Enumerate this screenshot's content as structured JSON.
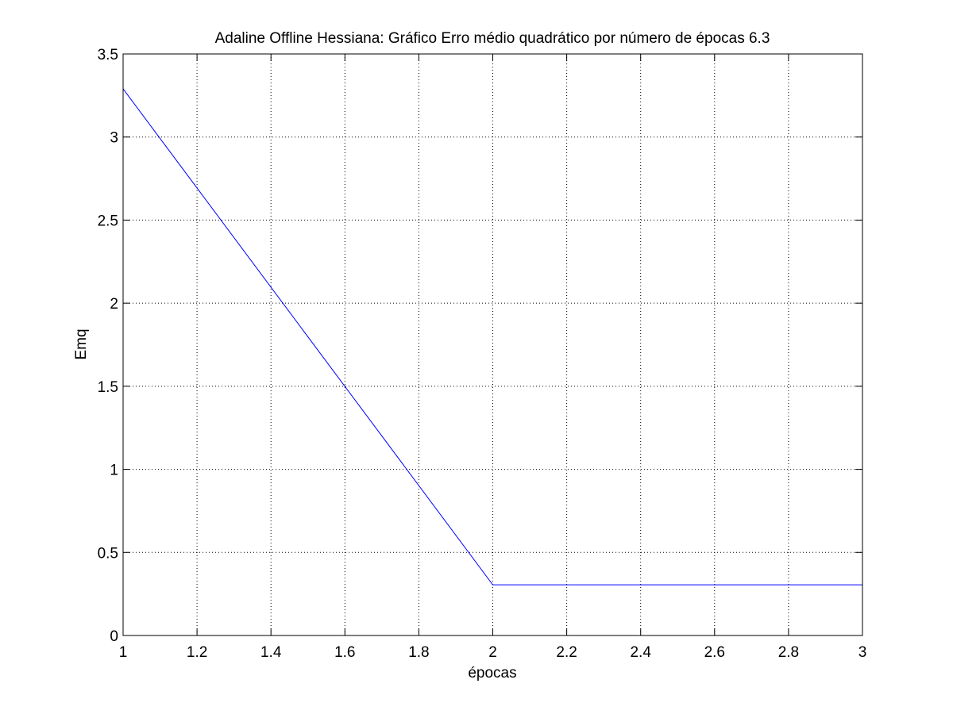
{
  "chart_data": {
    "type": "line",
    "title": "Adaline Offline Hessiana: Gráfico Erro médio quadrático por número de épocas 6.3",
    "xlabel": "épocas",
    "ylabel": "Emq",
    "xlim": [
      1,
      3
    ],
    "ylim": [
      0,
      3.5
    ],
    "xticks": [
      1,
      1.2,
      1.4,
      1.6,
      1.8,
      2,
      2.2,
      2.4,
      2.6,
      2.8,
      3
    ],
    "xtick_labels": [
      "1",
      "1.2",
      "1.4",
      "1.6",
      "1.8",
      "2",
      "2.2",
      "2.4",
      "2.6",
      "2.8",
      "3"
    ],
    "yticks": [
      0,
      0.5,
      1,
      1.5,
      2,
      2.5,
      3,
      3.5
    ],
    "ytick_labels": [
      "0",
      "0.5",
      "1",
      "1.5",
      "2",
      "2.5",
      "3",
      "3.5"
    ],
    "grid": true,
    "series": [
      {
        "color": "#0000ff",
        "x": [
          1,
          2,
          3
        ],
        "y": [
          3.29,
          0.305,
          0.305
        ]
      }
    ]
  }
}
